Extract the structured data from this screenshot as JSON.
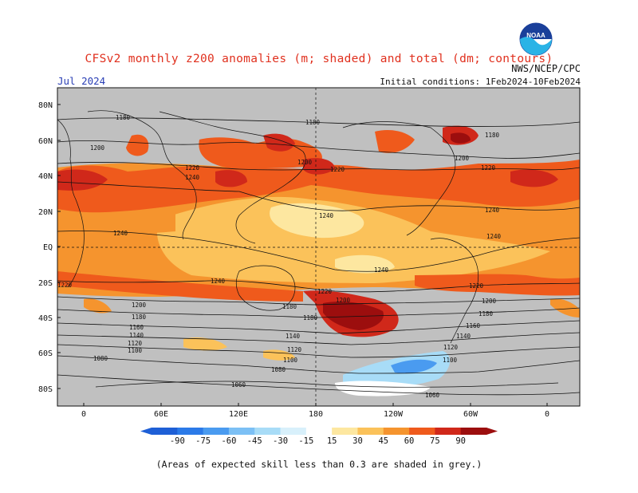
{
  "title": "CFSv2 monthly z200 anomalies (m; shaded) and total (dm; contours)",
  "valid_month": "Jul 2024",
  "agency": "NWS/NCEP/CPC",
  "initial_conditions": "Initial conditions: 1Feb2024-10Feb2024",
  "logo_text": "NOAA",
  "footnote": "(Areas of expected skill less than 0.3 are shaded in grey.)",
  "map": {
    "lat_labels": [
      "80N",
      "60N",
      "40N",
      "20N",
      "EQ",
      "20S",
      "40S",
      "60S",
      "80S"
    ],
    "lon_labels": [
      "0",
      "60E",
      "120E",
      "180",
      "120W",
      "60W",
      "0"
    ],
    "contour_labels": [
      "1180",
      "1200",
      "1220",
      "1240",
      "1240",
      "1240",
      "1220",
      "1200",
      "1180",
      "1160",
      "1140",
      "1120",
      "1100",
      "1080",
      "1060",
      "1180",
      "1200",
      "1220",
      "1240",
      "1240",
      "1220",
      "1200",
      "1180",
      "1140",
      "1120",
      "1100",
      "1080",
      "1060",
      "1180",
      "1200",
      "1220",
      "1240",
      "1240",
      "1220",
      "1200",
      "1180",
      "1140",
      "1120",
      "1100",
      "1080",
      "1060"
    ],
    "colors": {
      "grey": "#c0c0c0",
      "ocean": "#c0c0c0"
    }
  },
  "colorbar": {
    "ticks": [
      "-90",
      "-75",
      "-60",
      "-45",
      "-30",
      "-15",
      "15",
      "30",
      "45",
      "60",
      "75",
      "90"
    ],
    "colors": [
      "#1e5fd6",
      "#2b7ae8",
      "#4a9bf0",
      "#7cc0f5",
      "#a8dcf7",
      "#d8f0fb",
      "#ffffff",
      "#fde7a0",
      "#fbc25a",
      "#f5942e",
      "#ef5a1c",
      "#d0281a",
      "#9c0e0e"
    ]
  }
}
